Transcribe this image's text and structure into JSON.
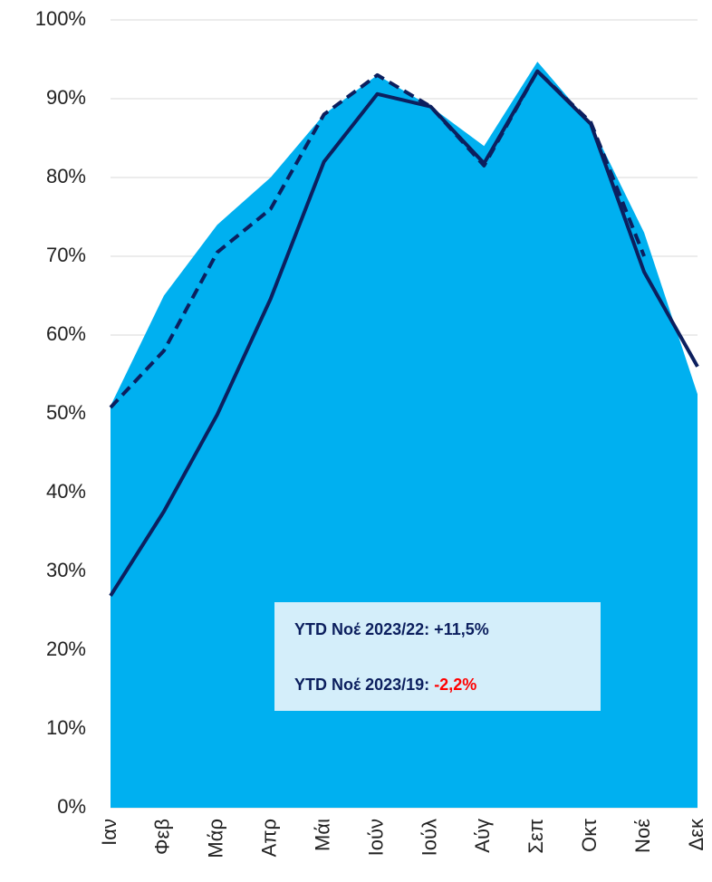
{
  "chart_data": {
    "type": "area_line",
    "categories": [
      "Ιαν",
      "Φεβ",
      "Μάρ",
      "Απρ",
      "Μάι",
      "Ιούν",
      "Ιούλ",
      "Αύγ",
      "Σεπ",
      "Οκτ",
      "Νοέ",
      "Δεκ"
    ],
    "series": [
      {
        "kind": "area",
        "color": "#00b0f0",
        "values": [
          51,
          65,
          74,
          80,
          88,
          93,
          89,
          84,
          94.7,
          86.8,
          73,
          52.5
        ]
      },
      {
        "kind": "line",
        "color": "#0c1f5e",
        "values": [
          26.9,
          37.6,
          49.9,
          64.6,
          82,
          90.6,
          89,
          81.8,
          93.5,
          86.8,
          68,
          56
        ]
      },
      {
        "kind": "line",
        "dash": true,
        "color": "#0c1f5e",
        "values": [
          50.8,
          58,
          70.5,
          76,
          88,
          93,
          89,
          81.5,
          93.5,
          87,
          70,
          null
        ]
      }
    ],
    "ylim": [
      0,
      100
    ],
    "yticks": [
      {
        "value": 0,
        "label": "0%"
      },
      {
        "value": 10,
        "label": "10%"
      },
      {
        "value": 20,
        "label": "20%"
      },
      {
        "value": 30,
        "label": "30%"
      },
      {
        "value": 40,
        "label": "40%"
      },
      {
        "value": 50,
        "label": "50%"
      },
      {
        "value": 60,
        "label": "60%"
      },
      {
        "value": 70,
        "label": "70%"
      },
      {
        "value": 80,
        "label": "80%"
      },
      {
        "value": 90,
        "label": "90%"
      },
      {
        "value": 100,
        "label": "100%"
      }
    ],
    "grid": true,
    "annotations": [
      {
        "text": "YTD Νοέ 2023/22: +11,5%"
      },
      {
        "text": "YTD Νοέ 2023/19: ",
        "highlight": "-2,2%",
        "highlight_color": "#ff0000"
      }
    ]
  }
}
